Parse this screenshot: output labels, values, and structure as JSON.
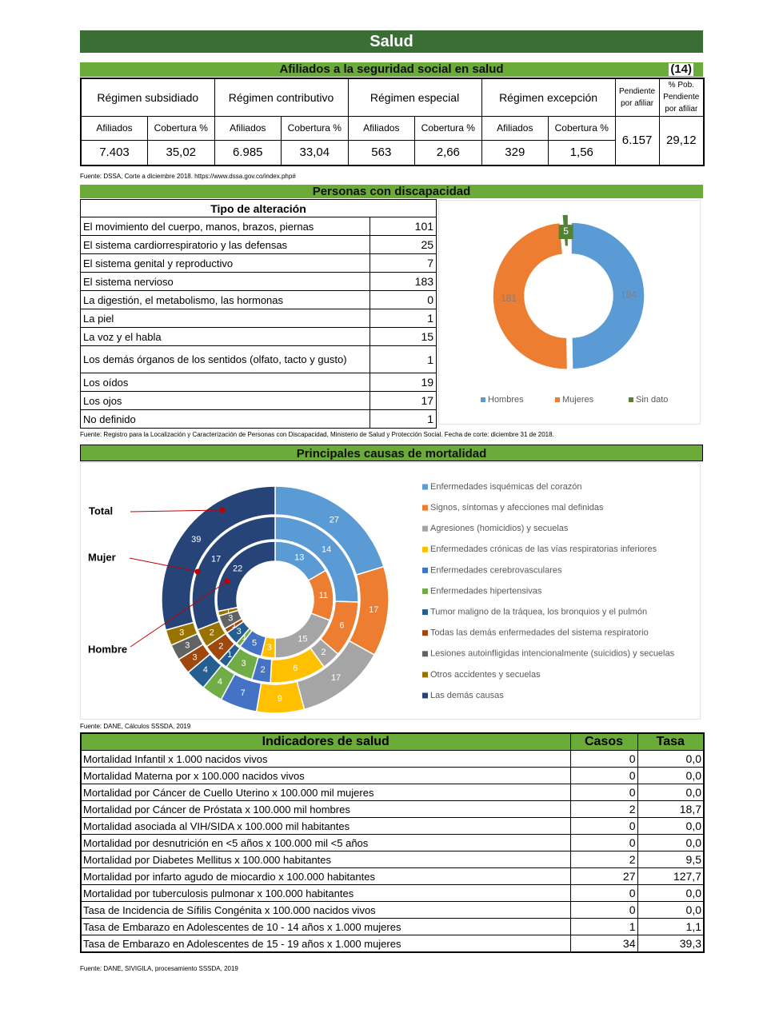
{
  "header": {
    "title": "Salud"
  },
  "afiliados": {
    "title": "Afiliados a la seguridad social en salud",
    "note": "(14)",
    "col_afiliados": "Afiliados",
    "col_cobertura": "Cobertura %",
    "regimenes": [
      {
        "name": "Régimen subsidiado",
        "afiliados": "7.403",
        "cobertura": "35,02"
      },
      {
        "name": "Régimen contributivo",
        "afiliados": "6.985",
        "cobertura": "33,04"
      },
      {
        "name": "Régimen especial",
        "afiliados": "563",
        "cobertura": "2,66"
      },
      {
        "name": "Régimen  excepción",
        "afiliados": "329",
        "cobertura": "1,56"
      }
    ],
    "pendiente": {
      "label": "Pendiente por afiliar",
      "value": "6.157"
    },
    "pct_pendiente": {
      "label": "% Pob. Pendiente por afiliar",
      "value": "29,12"
    },
    "source": "Fuente: DSSA, Corte a diciembre 2018. https://www.dssa.gov.co/index.php#"
  },
  "discapacidad": {
    "title": "Personas con discapacidad",
    "table_header": "Tipo de alteración",
    "rows": [
      {
        "label": "El movimiento del cuerpo, manos, brazos, piernas",
        "value": 101
      },
      {
        "label": "El sistema cardiorrespiratorio y las defensas",
        "value": 25
      },
      {
        "label": "El sistema genital y reproductivo",
        "value": 7
      },
      {
        "label": "El sistema nervioso",
        "value": 183
      },
      {
        "label": "La digestión, el metabolismo, las hormonas",
        "value": 0
      },
      {
        "label": "La piel",
        "value": 1
      },
      {
        "label": "La voz y el habla",
        "value": 15
      },
      {
        "label": "Los demás órganos de los sentidos (olfato, tacto y gusto)",
        "value": 1
      },
      {
        "label": "Los oídos",
        "value": 19
      },
      {
        "label": "Los ojos",
        "value": 17
      },
      {
        "label": "No definido",
        "value": 1
      }
    ],
    "source": "Fuente: Registro para la Localización y Caracterización de Personas con Discapacidad, Ministerio de Salud y Protección Social. Fecha de corte: diciembre 31 de 2018."
  },
  "mortalidad": {
    "title": "Principales causas de mortalidad",
    "source": "Fuente: DANE, Cálculos SSSDA, 2019"
  },
  "chart_data": [
    {
      "type": "pie",
      "donut": true,
      "legend": "bottom",
      "categories": [
        "Hombres",
        "Mujeres",
        "Sin dato"
      ],
      "values": [
        184,
        181,
        5
      ],
      "colors": [
        "#5b9bd5",
        "#ed7d31",
        "#548235"
      ]
    },
    {
      "type": "pie",
      "donut": true,
      "legend": "right",
      "categories": [
        "Enfermedades isquémicas del corazón",
        "Signos, síntomas y afecciones mal definidas",
        "Agresiones (homicidios) y secuelas",
        "Enfermedades crónicas de las vías respiratorias inferiores",
        "Enfermedades cerebrovasculares",
        "Enfermedades hipertensivas",
        "Tumor maligno de la tráquea, los bronquios y el pulmón",
        "Todas las demás enfermedades del sistema respiratorio",
        "Lesiones autoinfligidas intencionalmente (suicidios) y secuelas",
        "Otros accidentes y secuelas",
        "Las demás causas"
      ],
      "colors": [
        "#5b9bd5",
        "#ed7d31",
        "#a5a5a5",
        "#ffc000",
        "#4472c4",
        "#70ad47",
        "#255e91",
        "#9e480e",
        "#636363",
        "#997300",
        "#264478"
      ],
      "series": [
        {
          "name": "Total",
          "values": [
            27,
            17,
            17,
            9,
            7,
            4,
            4,
            3,
            3,
            3,
            39
          ]
        },
        {
          "name": "Mujer",
          "values": [
            14,
            6,
            2,
            6,
            2,
            3,
            1,
            2,
            0,
            2,
            17
          ]
        },
        {
          "name": "Hombre",
          "values": [
            13,
            11,
            15,
            3,
            5,
            1,
            3,
            1,
            3,
            1,
            22
          ]
        }
      ]
    }
  ],
  "indicadores": {
    "headers": [
      "Indicadores de salud",
      "Casos",
      "Tasa"
    ],
    "rows": [
      [
        "Mortalidad Infantil x 1.000 nacidos vivos",
        0,
        "0,0"
      ],
      [
        "Mortalidad Materna por x 100.000 nacidos vivos",
        0,
        "0,0"
      ],
      [
        "Mortalidad por Cáncer de Cuello Uterino x 100.000 mil mujeres",
        0,
        "0,0"
      ],
      [
        "Mortalidad por Cáncer de Próstata x 100.000 mil hombres",
        2,
        "18,7"
      ],
      [
        "Mortalidad asociada al VIH/SIDA x 100.000 mil habitantes",
        0,
        "0,0"
      ],
      [
        "Mortalidad por desnutrición en <5 años x 100.000 mil <5 años",
        0,
        "0,0"
      ],
      [
        "Mortalidad por Diabetes Mellitus x 100.000 habitantes",
        2,
        "9,5"
      ],
      [
        "Mortalidad por infarto agudo de miocardio x 100.000 habitantes",
        27,
        "127,7"
      ],
      [
        "Mortalidad por tuberculosis pulmonar x 100.000 habitantes",
        0,
        "0,0"
      ],
      [
        "Tasa de Incidencia de Sífilis Congénita x 100.000 nacidos vivos",
        0,
        "0,0"
      ],
      [
        "Tasa de Embarazo en Adolescentes de 10 - 14 años x 1.000 mujeres",
        1,
        "1,1"
      ],
      [
        "Tasa de Embarazo en Adolescentes de 15 - 19 años x 1.000 mujeres",
        34,
        "39,3"
      ]
    ],
    "source": "Fuente: DANE, SIVIGILA, procesamiento SSSDA, 2019"
  }
}
